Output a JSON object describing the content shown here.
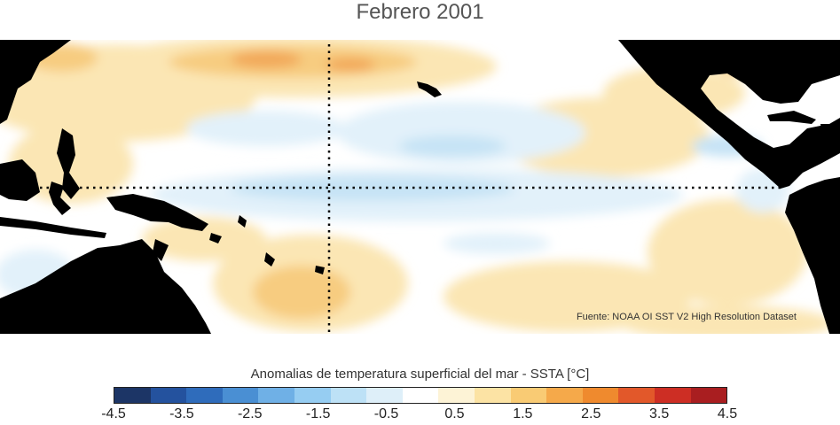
{
  "title": "Febrero 2001",
  "source": "Fuente: NOAA OI SST V2 High Resolution Dataset",
  "colorbar": {
    "label": "Anomalias de temperatura superficial del mar - SSTA  [°C]",
    "colors": [
      "#1c3566",
      "#24529e",
      "#2f6cbb",
      "#4a8fd3",
      "#6fb0e6",
      "#96cdf2",
      "#bde1f6",
      "#deeff9",
      "#ffffff",
      "#fdf3d6",
      "#fce3a4",
      "#f9cb74",
      "#f5a94a",
      "#ef8a2e",
      "#e2582a",
      "#cd2e24",
      "#a91e20"
    ],
    "tick_labels": [
      "-4.5",
      "-3.5",
      "-2.5",
      "-1.5",
      "-0.5",
      "0.5",
      "1.5",
      "2.5",
      "3.5",
      "4.5"
    ],
    "tick_values": [
      -4.5,
      -3.5,
      -2.5,
      -1.5,
      -0.5,
      0.5,
      1.5,
      2.5,
      3.5,
      4.5
    ],
    "range": [
      -4.5,
      4.5
    ]
  },
  "colors": {
    "land": "#000000",
    "warm_light": "#fbe6b4",
    "warm_mid": "#f7cc80",
    "warm_strong": "#f2a95a",
    "cool_light": "#e2f1fa",
    "cool_mid": "#c6e3f5",
    "cool_strong": "#8ec6ec"
  }
}
